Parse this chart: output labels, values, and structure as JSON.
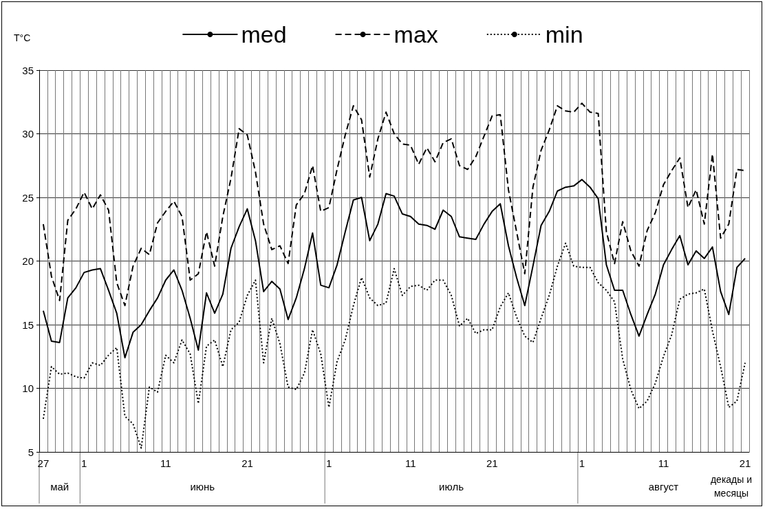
{
  "chart_data": {
    "type": "line",
    "ylabel": "T°C",
    "xlabel": "декады и месяцы",
    "categories": [
      "27",
      null,
      null,
      null,
      null,
      "1",
      null,
      null,
      null,
      null,
      null,
      null,
      null,
      null,
      null,
      "11",
      null,
      null,
      null,
      null,
      null,
      null,
      null,
      null,
      null,
      "21",
      null,
      null,
      null,
      null,
      null,
      null,
      null,
      null,
      null,
      "1",
      null,
      null,
      null,
      null,
      null,
      null,
      null,
      null,
      null,
      "11",
      null,
      null,
      null,
      null,
      null,
      null,
      null,
      null,
      null,
      "21",
      null,
      null,
      null,
      null,
      null,
      null,
      null,
      null,
      null,
      null,
      "1",
      null,
      null,
      null,
      null,
      null,
      null,
      null,
      null,
      null,
      "11",
      null,
      null,
      null,
      null,
      null,
      null,
      null,
      null,
      null,
      "21"
    ],
    "series": [
      {
        "name": "med",
        "color": "#000000",
        "line_style": "solid",
        "values": [
          16.1,
          13.7,
          13.6,
          17.1,
          17.9,
          19.1,
          19.3,
          19.4,
          17.7,
          15.9,
          12.4,
          14.4,
          15.0,
          16.1,
          17.1,
          18.5,
          19.3,
          17.7,
          15.5,
          13.0,
          17.5,
          15.9,
          17.4,
          21.0,
          22.7,
          24.1,
          21.6,
          17.6,
          18.4,
          17.8,
          15.4,
          17.1,
          19.4,
          22.2,
          18.1,
          17.9,
          19.7,
          22.3,
          24.8,
          25.0,
          21.6,
          22.9,
          25.3,
          25.1,
          23.7,
          23.5,
          22.9,
          22.8,
          22.5,
          24.0,
          23.5,
          21.9,
          21.8,
          21.7,
          22.9,
          23.9,
          24.5,
          21.2,
          18.7,
          16.5,
          19.6,
          22.8,
          23.9,
          25.5,
          25.8,
          25.9,
          26.4,
          25.8,
          24.9,
          19.7,
          17.7,
          17.7,
          15.8,
          14.1,
          15.8,
          17.4,
          19.7,
          20.9,
          22.0,
          19.7,
          20.8,
          20.2,
          21.1,
          17.6,
          15.8,
          19.5,
          20.2
        ]
      },
      {
        "name": "max",
        "color": "#000000",
        "line_style": "dashed",
        "values": [
          22.9,
          18.8,
          16.9,
          23.2,
          24.1,
          25.4,
          24.1,
          25.2,
          24.0,
          18.3,
          16.5,
          19.6,
          21.0,
          20.5,
          23.0,
          23.9,
          24.7,
          23.5,
          18.5,
          19.0,
          22.3,
          19.6,
          23.5,
          26.5,
          30.4,
          29.9,
          27.0,
          22.9,
          20.9,
          21.2,
          19.8,
          24.4,
          25.3,
          27.5,
          23.9,
          24.2,
          27.2,
          29.9,
          32.2,
          31.1,
          26.6,
          29.6,
          31.7,
          30.0,
          29.2,
          29.1,
          27.6,
          28.9,
          27.8,
          29.3,
          29.6,
          27.5,
          27.2,
          28.2,
          29.8,
          31.4,
          31.5,
          25.6,
          22.3,
          19.0,
          25.8,
          28.7,
          30.3,
          32.2,
          31.8,
          31.7,
          32.4,
          31.7,
          31.6,
          22.3,
          19.8,
          23.1,
          20.8,
          19.6,
          22.4,
          23.8,
          26.0,
          27.1,
          28.1,
          24.2,
          25.6,
          22.9,
          28.4,
          21.8,
          22.9,
          27.2,
          27.1
        ]
      },
      {
        "name": "min",
        "color": "#000000",
        "line_style": "dotted",
        "values": [
          7.6,
          11.7,
          11.1,
          11.2,
          10.9,
          10.8,
          12.0,
          11.8,
          12.6,
          13.2,
          7.8,
          7.2,
          5.3,
          10.1,
          9.7,
          12.6,
          12.0,
          13.8,
          12.7,
          8.8,
          13.3,
          13.8,
          11.7,
          14.6,
          15.2,
          17.3,
          18.5,
          12.0,
          15.5,
          13.5,
          10.1,
          9.9,
          11.2,
          14.6,
          12.7,
          8.5,
          12.1,
          13.8,
          16.5,
          18.7,
          17.1,
          16.5,
          16.7,
          19.4,
          17.3,
          18.0,
          18.1,
          17.7,
          18.5,
          18.5,
          17.3,
          14.9,
          15.5,
          14.3,
          14.6,
          14.6,
          16.4,
          17.5,
          15.6,
          14.1,
          13.6,
          15.5,
          17.3,
          19.6,
          21.4,
          19.6,
          19.5,
          19.5,
          18.3,
          17.7,
          16.8,
          12.3,
          9.9,
          8.4,
          9.0,
          10.4,
          12.5,
          14.2,
          17.0,
          17.4,
          17.5,
          17.8,
          14.5,
          11.7,
          8.5,
          9.0,
          12.0
        ]
      }
    ],
    "ylim": [
      5,
      35
    ],
    "yticks": [
      5,
      10,
      15,
      20,
      25,
      30,
      35
    ],
    "grid": true,
    "legend": "top",
    "marker": "none",
    "annotations": [
      "май",
      "июнь",
      "июль",
      "август"
    ]
  }
}
